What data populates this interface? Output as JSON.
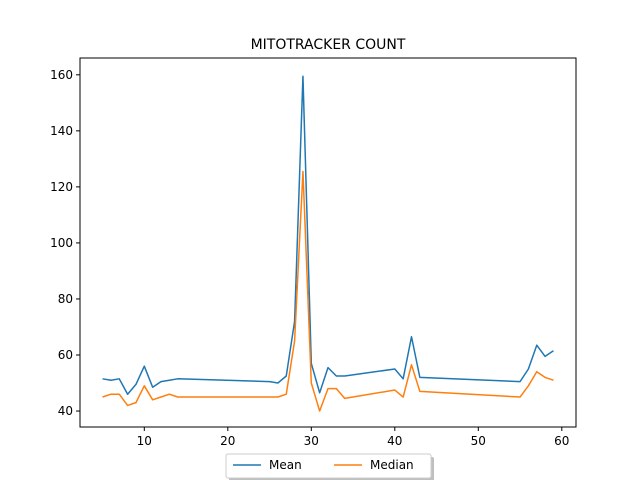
{
  "chart_data": {
    "type": "line",
    "title": "MITOTRACKER COUNT",
    "xlabel": "",
    "ylabel": "",
    "xlim": [
      2.3,
      61.7
    ],
    "ylim": [
      34.3,
      166
    ],
    "xticks": [
      10,
      20,
      30,
      40,
      50,
      60
    ],
    "yticks": [
      40,
      60,
      80,
      100,
      120,
      140,
      160
    ],
    "grid": false,
    "legend_position": "bottom-center",
    "series": [
      {
        "name": "Mean",
        "color": "#1f77b4",
        "x": [
          5,
          6,
          7,
          8,
          9,
          10,
          11,
          12,
          13,
          14,
          25,
          26,
          27,
          28,
          29,
          30,
          31,
          32,
          33,
          34,
          40,
          41,
          42,
          43,
          55,
          56,
          57,
          58,
          59
        ],
        "y": [
          51.5,
          51,
          51.5,
          46,
          49.5,
          56,
          48.5,
          50.5,
          51,
          51.5,
          50.5,
          50,
          52.5,
          72,
          159.5,
          57,
          46.5,
          55.5,
          52.5,
          52.5,
          55,
          51.5,
          66.5,
          52,
          50.5,
          55,
          63.5,
          59.5,
          61.5
        ]
      },
      {
        "name": "Median",
        "color": "#ff7f0e",
        "x": [
          5,
          6,
          7,
          8,
          9,
          10,
          11,
          12,
          13,
          14,
          25,
          26,
          27,
          28,
          29,
          30,
          31,
          32,
          33,
          34,
          40,
          41,
          42,
          43,
          55,
          56,
          57,
          58,
          59
        ],
        "y": [
          45,
          46,
          46,
          42,
          43,
          49,
          44,
          45,
          46,
          45,
          45,
          45,
          46,
          65,
          125.5,
          50,
          40,
          48,
          48,
          44.5,
          47.5,
          45,
          56.5,
          47,
          45,
          49,
          54,
          52,
          51
        ]
      }
    ]
  }
}
